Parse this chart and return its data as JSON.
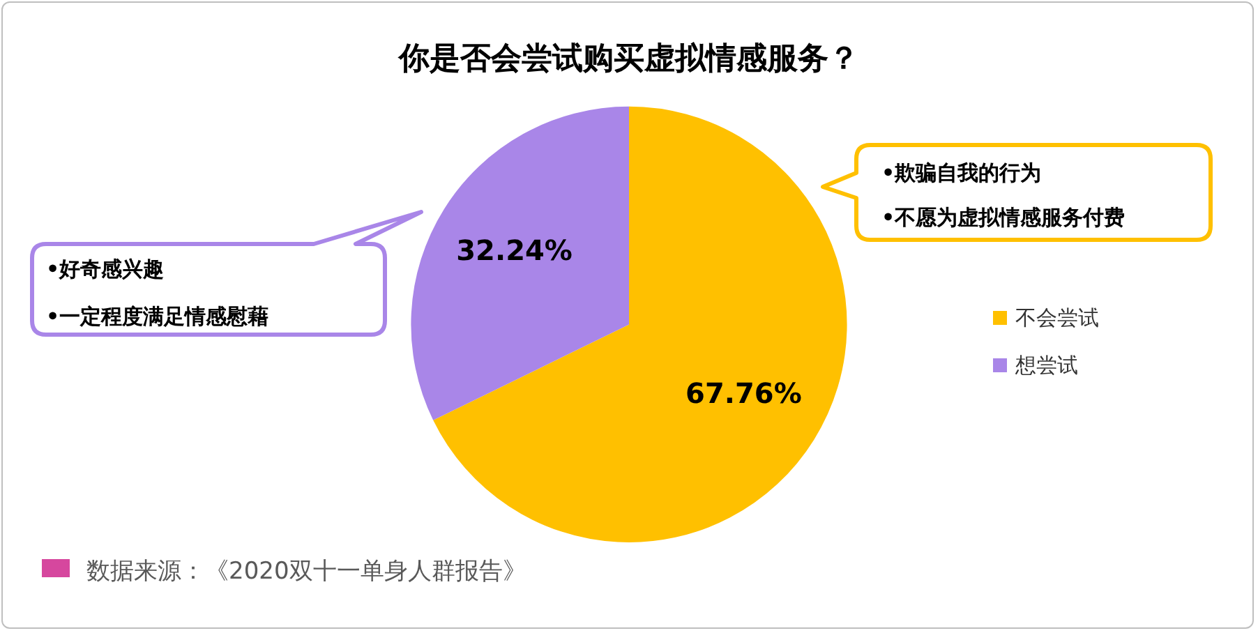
{
  "chart_data": {
    "type": "pie",
    "title": "你是否会尝试购买虚拟情感服务？",
    "categories": [
      "不会尝试",
      "想尝试"
    ],
    "values": [
      67.76,
      32.24
    ],
    "colors": [
      "#ffc000",
      "#a986e8"
    ],
    "value_labels": [
      "67.76%",
      "32.24%"
    ],
    "legend": "right",
    "annotations": [
      "•欺骗自我的行为",
      "•不愿为虚拟情感服务付费",
      "•好奇感兴趣",
      "•一定程度满足情感慰藉",
      "数据来源：《2020双十一单身人群报告》"
    ]
  }
}
